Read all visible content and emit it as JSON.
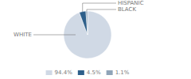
{
  "chart_data": {
    "type": "pie",
    "categories": [
      "WHITE",
      "HISPANIC",
      "BLACK"
    ],
    "values": [
      94.4,
      4.5,
      1.1
    ],
    "value_labels": [
      "94.4%",
      "4.5%",
      "1.1%"
    ],
    "colors": [
      "#d0d9e5",
      "#2e5f8a",
      "#8fa4b8"
    ],
    "legend": "bottom"
  }
}
